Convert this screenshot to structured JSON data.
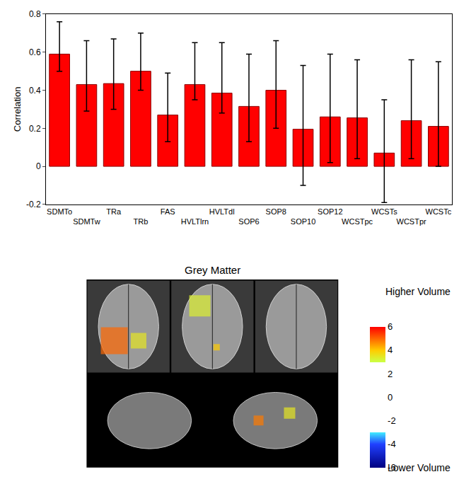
{
  "chart_data": [
    {
      "type": "bar",
      "y_label": "Correlation",
      "categories": [
        "SDMTo",
        "SDMTw",
        "TRa",
        "TRb",
        "FAS",
        "HVLTlrn",
        "HVLTdl",
        "SOP6",
        "SOP8",
        "SOP10",
        "SOP12",
        "WCSTpc",
        "WCSTs",
        "WCSTpr",
        "WCSTc"
      ],
      "values": [
        0.59,
        0.43,
        0.435,
        0.5,
        0.27,
        0.43,
        0.385,
        0.315,
        0.4,
        0.195,
        0.26,
        0.255,
        0.07,
        0.24,
        0.21
      ],
      "ci_low": [
        0.5,
        0.29,
        0.3,
        0.4,
        0.13,
        0.35,
        0.28,
        0.13,
        0.2,
        -0.1,
        0.02,
        0.04,
        -0.19,
        0.04,
        0.0
      ],
      "ci_high": [
        0.76,
        0.66,
        0.67,
        0.7,
        0.49,
        0.65,
        0.65,
        0.59,
        0.66,
        0.53,
        0.59,
        0.56,
        0.35,
        0.56,
        0.55
      ],
      "color": "#ff0000",
      "ylim": [
        -0.2,
        0.8
      ],
      "yticks": [
        -0.2,
        0,
        0.2,
        0.4,
        0.6,
        0.8
      ],
      "grid": false
    },
    {
      "type": "brain_map",
      "title": "Grey Matter",
      "cluster_values": [
        5.0,
        3.5,
        3.3,
        4.0,
        4.8,
        3.5
      ],
      "colorbar_range": [
        -6,
        6
      ],
      "colorbar_ticks": [
        -6,
        -4,
        -2,
        0,
        2,
        4,
        6
      ],
      "high_label": "Higher Volume",
      "low_label": "Lower Volume"
    }
  ]
}
